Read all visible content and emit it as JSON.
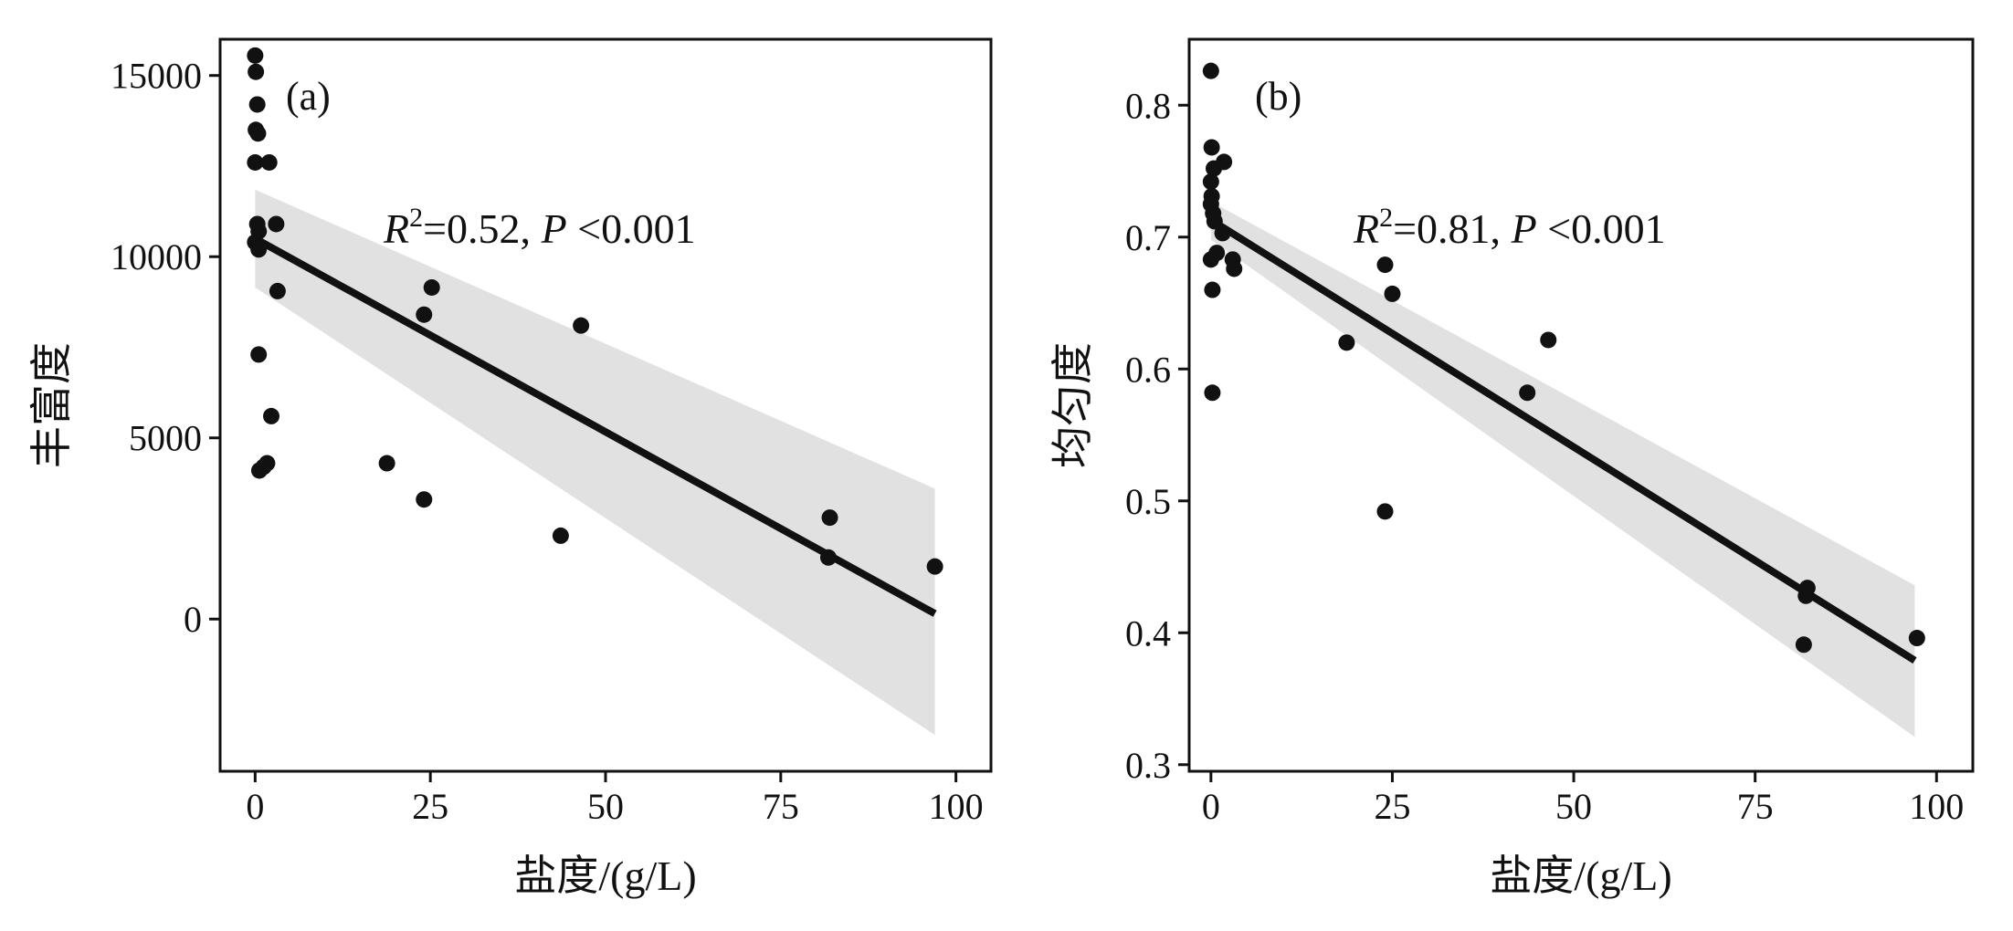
{
  "chart_data": [
    {
      "type": "scatter",
      "panel_label": "(a)",
      "xlabel": "盐度/(g/L)",
      "ylabel": "丰富度",
      "xlim": [
        -5,
        105
      ],
      "ylim": [
        -4200,
        16000
      ],
      "xticks": [
        0,
        25,
        50,
        75,
        100
      ],
      "yticks": [
        0,
        5000,
        10000,
        15000
      ],
      "grid": false,
      "annotation": {
        "prefix": "R",
        "sup": "2",
        "mid": "=0.52, ",
        "p": "P",
        "suffix": " <0.001"
      },
      "fit": {
        "x": [
          0,
          97
        ],
        "y": [
          10500,
          150
        ]
      },
      "ci_band": {
        "x": [
          0,
          97
        ],
        "upper": [
          11850,
          3600
        ],
        "lower": [
          9150,
          -3200
        ]
      },
      "points": [
        {
          "x": 0.0,
          "y": 15550
        },
        {
          "x": 0.1,
          "y": 15100
        },
        {
          "x": 0.3,
          "y": 14200
        },
        {
          "x": 0.1,
          "y": 13500
        },
        {
          "x": 0.4,
          "y": 13400
        },
        {
          "x": 0.0,
          "y": 12600
        },
        {
          "x": 2.0,
          "y": 12600
        },
        {
          "x": 3.0,
          "y": 10900
        },
        {
          "x": 0.3,
          "y": 10900
        },
        {
          "x": 0.5,
          "y": 10700
        },
        {
          "x": 0.0,
          "y": 10400
        },
        {
          "x": 0.5,
          "y": 10200
        },
        {
          "x": 3.2,
          "y": 9050
        },
        {
          "x": 25.2,
          "y": 9150
        },
        {
          "x": 24.1,
          "y": 8400
        },
        {
          "x": 46.5,
          "y": 8100
        },
        {
          "x": 0.5,
          "y": 7300
        },
        {
          "x": 2.3,
          "y": 5600
        },
        {
          "x": 1.7,
          "y": 4300
        },
        {
          "x": 0.6,
          "y": 4100
        },
        {
          "x": 1.2,
          "y": 4200
        },
        {
          "x": 18.8,
          "y": 4300
        },
        {
          "x": 24.1,
          "y": 3300
        },
        {
          "x": 43.6,
          "y": 2300
        },
        {
          "x": 82.0,
          "y": 2800
        },
        {
          "x": 81.8,
          "y": 1700
        },
        {
          "x": 97.0,
          "y": 1450
        }
      ]
    },
    {
      "type": "scatter",
      "panel_label": "(b)",
      "xlabel": "盐度/(g/L)",
      "ylabel": "均匀度",
      "xlim": [
        -3,
        105
      ],
      "ylim": [
        0.295,
        0.85
      ],
      "xticks": [
        0,
        25,
        50,
        75,
        100
      ],
      "yticks": [
        0.3,
        0.4,
        0.5,
        0.6,
        0.7,
        0.8
      ],
      "grid": false,
      "annotation": {
        "prefix": "R",
        "sup": "2",
        "mid": "=0.81, ",
        "p": "P",
        "suffix": " <0.001"
      },
      "fit": {
        "x": [
          0,
          97
        ],
        "y": [
          0.713,
          0.379
        ]
      },
      "ci_band": {
        "x": [
          0,
          97
        ],
        "upper": [
          0.727,
          0.436
        ],
        "lower": [
          0.698,
          0.321
        ]
      },
      "points": [
        {
          "x": 0.0,
          "y": 0.826
        },
        {
          "x": 0.1,
          "y": 0.768
        },
        {
          "x": 1.8,
          "y": 0.757
        },
        {
          "x": 0.4,
          "y": 0.752
        },
        {
          "x": 0.0,
          "y": 0.742
        },
        {
          "x": 0.1,
          "y": 0.731
        },
        {
          "x": 0.0,
          "y": 0.725
        },
        {
          "x": 0.3,
          "y": 0.718
        },
        {
          "x": 0.5,
          "y": 0.712
        },
        {
          "x": 1.6,
          "y": 0.703
        },
        {
          "x": 0.8,
          "y": 0.688
        },
        {
          "x": 0.0,
          "y": 0.683
        },
        {
          "x": 3.0,
          "y": 0.683
        },
        {
          "x": 3.2,
          "y": 0.676
        },
        {
          "x": 0.2,
          "y": 0.66
        },
        {
          "x": 24.0,
          "y": 0.679
        },
        {
          "x": 25.0,
          "y": 0.657
        },
        {
          "x": 46.5,
          "y": 0.622
        },
        {
          "x": 18.7,
          "y": 0.62
        },
        {
          "x": 43.6,
          "y": 0.582
        },
        {
          "x": 0.2,
          "y": 0.582
        },
        {
          "x": 24.0,
          "y": 0.492
        },
        {
          "x": 82.2,
          "y": 0.434
        },
        {
          "x": 82.0,
          "y": 0.428
        },
        {
          "x": 81.7,
          "y": 0.391
        },
        {
          "x": 97.3,
          "y": 0.396
        }
      ]
    }
  ]
}
